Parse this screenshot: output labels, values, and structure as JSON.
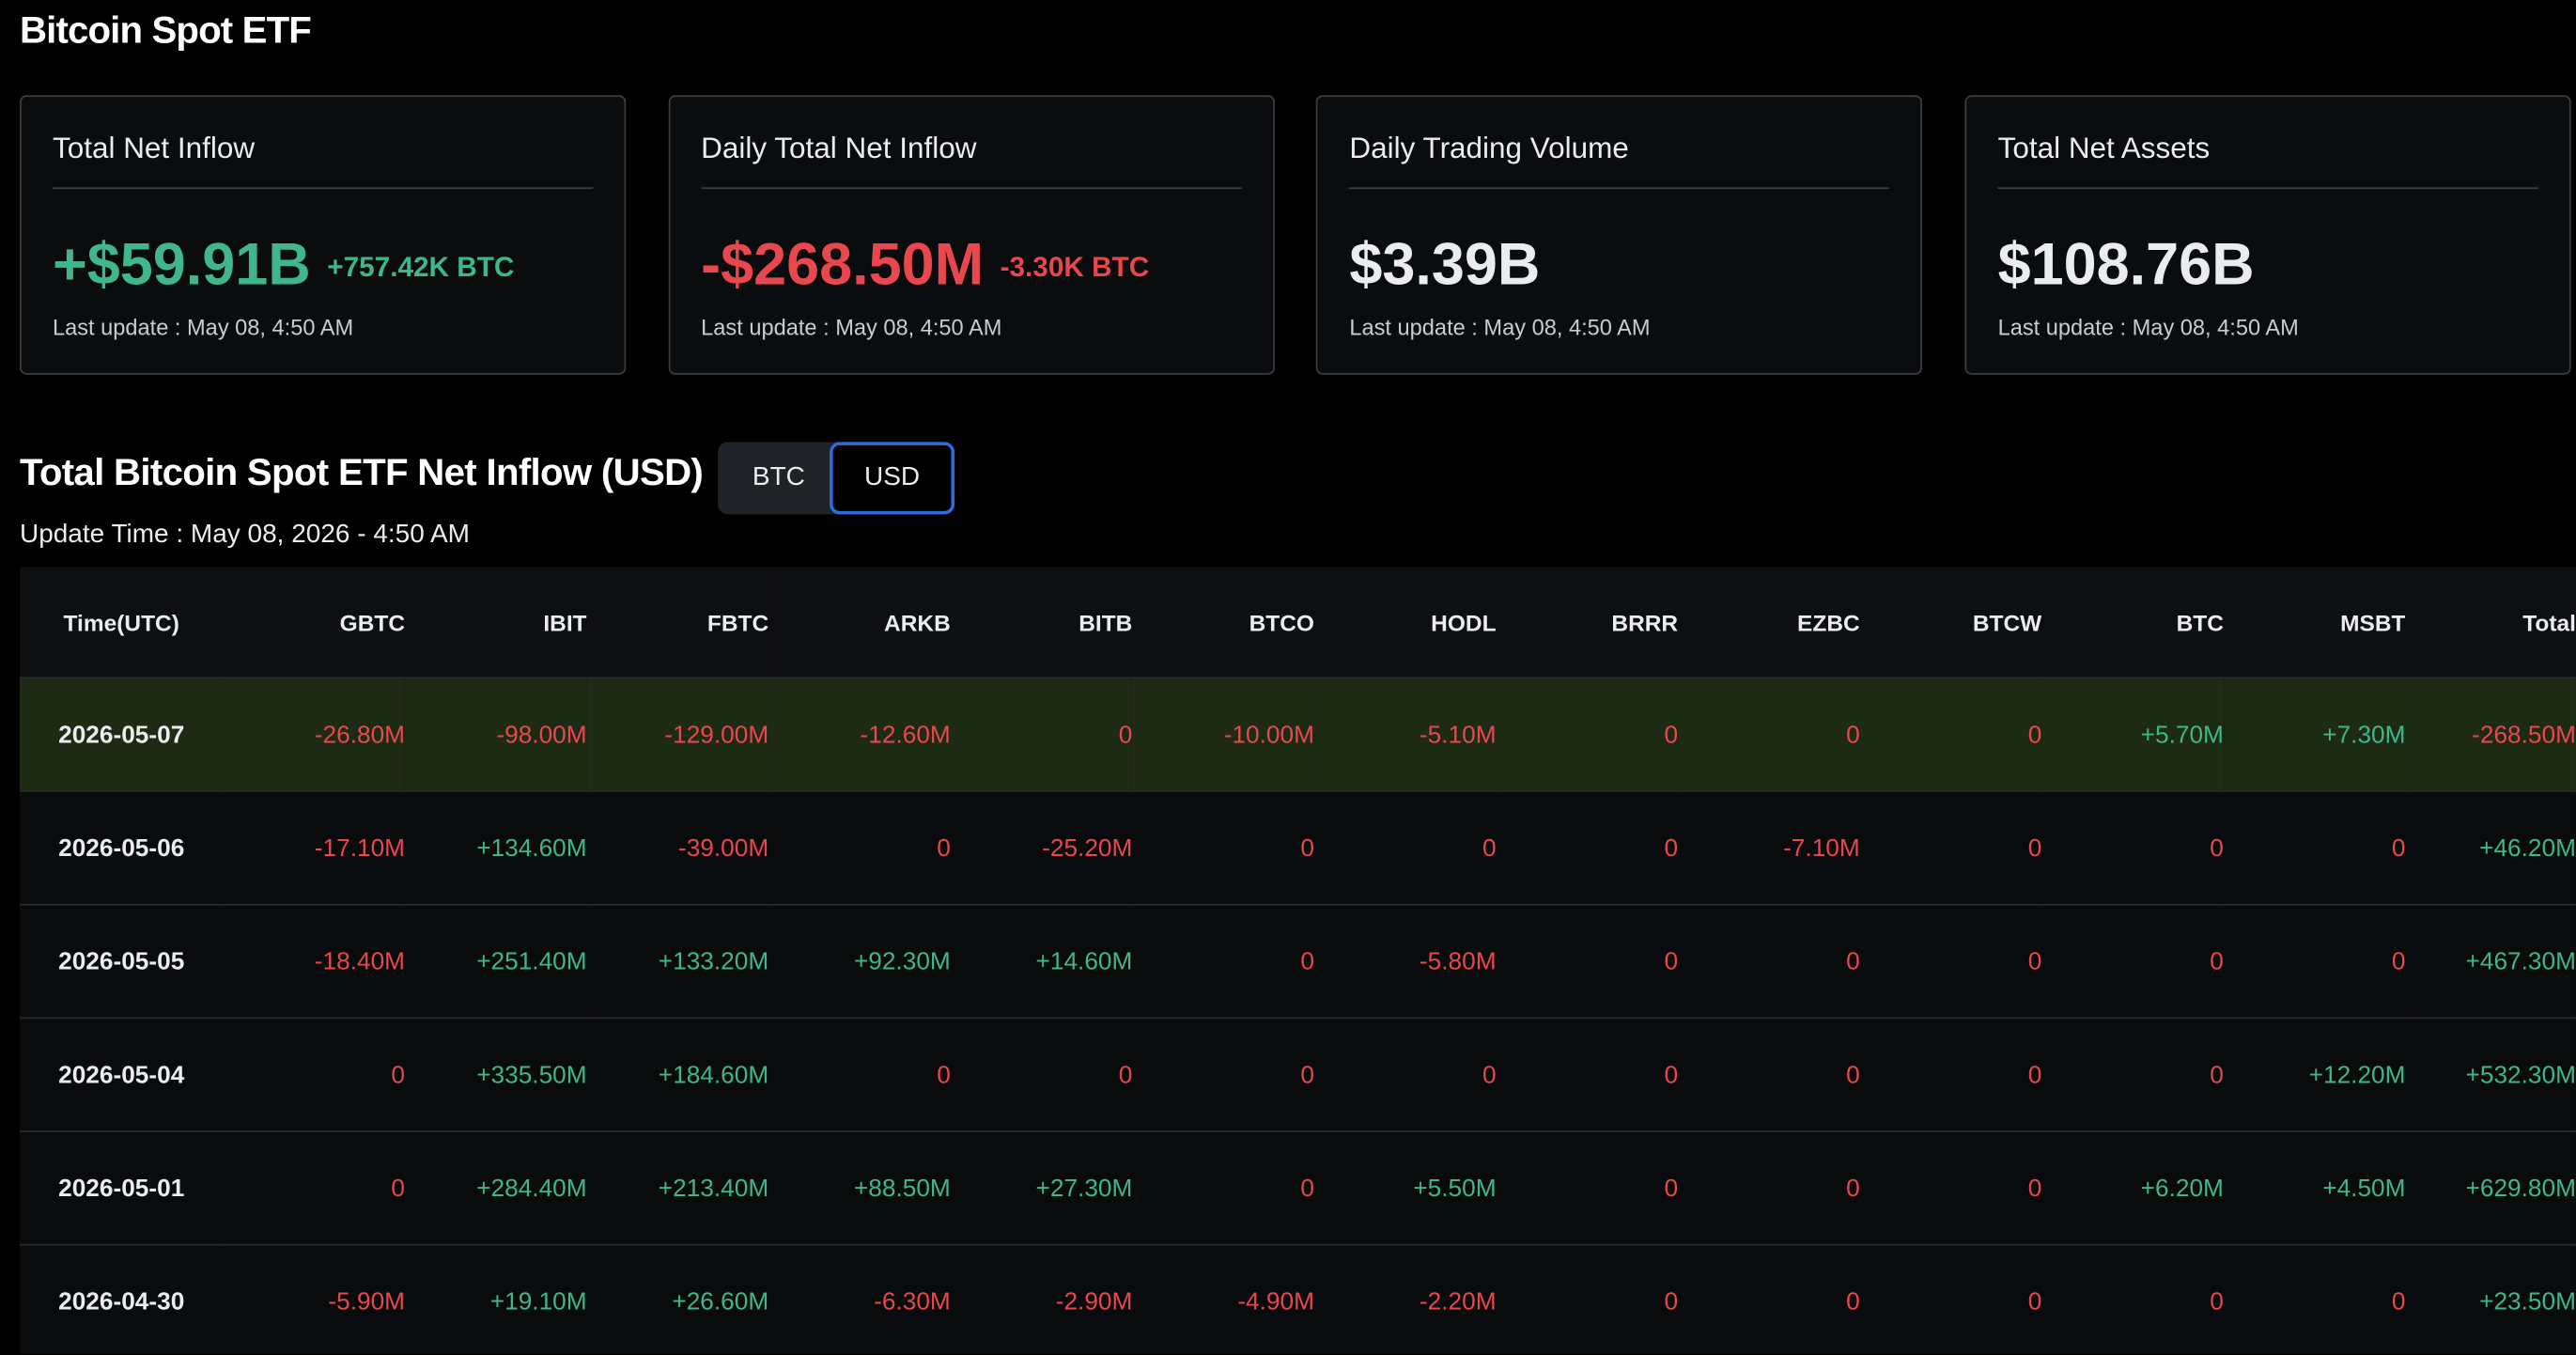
{
  "header": {
    "title": "Bitcoin Spot ETF"
  },
  "cards": [
    {
      "label": "Total Net Inflow",
      "value": "+$59.91B",
      "sub": "+757.42K BTC",
      "update": "Last update : May 08, 4:50 AM"
    },
    {
      "label": "Daily Total Net Inflow",
      "value": "-$268.50M",
      "sub": "-3.30K BTC",
      "update": "Last update : May 08, 4:50 AM"
    },
    {
      "label": "Daily Trading Volume",
      "value": "$3.39B",
      "update": "Last update : May 08, 4:50 AM"
    },
    {
      "label": "Total Net Assets",
      "value": "$108.76B",
      "update": "Last update : May 08, 4:50 AM"
    }
  ],
  "section": {
    "title": "Total Bitcoin Spot ETF Net Inflow (USD)",
    "toggle": [
      "BTC",
      "USD"
    ],
    "update_time": "Update Time : May 08, 2026 - 4:50 AM"
  },
  "table": {
    "columns": [
      "Time(UTC)",
      "GBTC",
      "IBIT",
      "FBTC",
      "ARKB",
      "BITB",
      "BTCO",
      "HODL",
      "BRRR",
      "EZBC",
      "BTCW",
      "BTC",
      "MSBT",
      "Total"
    ],
    "rows": [
      [
        "2026-05-07",
        "-26.80M",
        "-98.00M",
        "-129.00M",
        "-12.60M",
        "0",
        "-10.00M",
        "-5.10M",
        "0",
        "0",
        "0",
        "+5.70M",
        "+7.30M",
        "-268.50M"
      ],
      [
        "2026-05-06",
        "-17.10M",
        "+134.60M",
        "-39.00M",
        "0",
        "-25.20M",
        "0",
        "0",
        "0",
        "-7.10M",
        "0",
        "0",
        "0",
        "+46.20M"
      ],
      [
        "2026-05-05",
        "-18.40M",
        "+251.40M",
        "+133.20M",
        "+92.30M",
        "+14.60M",
        "0",
        "-5.80M",
        "0",
        "0",
        "0",
        "0",
        "0",
        "+467.30M"
      ],
      [
        "2026-05-04",
        "0",
        "+335.50M",
        "+184.60M",
        "0",
        "0",
        "0",
        "0",
        "0",
        "0",
        "0",
        "0",
        "+12.20M",
        "+532.30M"
      ],
      [
        "2026-05-01",
        "0",
        "+284.40M",
        "+213.40M",
        "+88.50M",
        "+27.30M",
        "0",
        "+5.50M",
        "0",
        "0",
        "0",
        "+6.20M",
        "+4.50M",
        "+629.80M"
      ],
      [
        "2026-04-30",
        "-5.90M",
        "+19.10M",
        "+26.60M",
        "-6.30M",
        "-2.90M",
        "-4.90M",
        "-2.20M",
        "0",
        "0",
        "0",
        "0",
        "0",
        "+23.50M"
      ]
    ]
  }
}
